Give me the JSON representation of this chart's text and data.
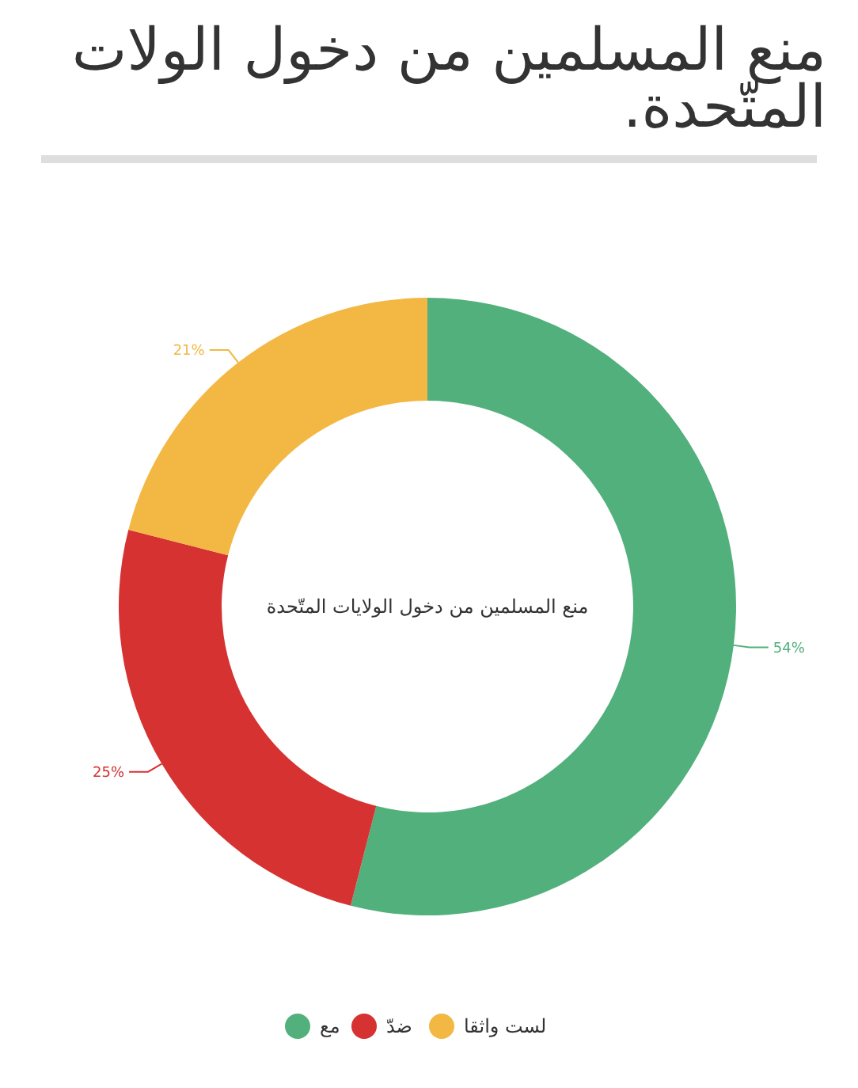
{
  "chart_data": {
    "type": "donut",
    "title": "منع المسلمين من دخول الولات المتّحدة.",
    "annotations": [
      "منع المسلمين من دخول الولايات المتّحدة"
    ],
    "categories": [
      "مع",
      "ضدّ",
      "لست واثقا"
    ],
    "values": [
      54,
      25,
      21
    ],
    "colors": [
      "#52b07c",
      "#d63232",
      "#f2b843"
    ],
    "value_labels": [
      "54%",
      "25%",
      "21%"
    ],
    "legend": "bottom"
  }
}
